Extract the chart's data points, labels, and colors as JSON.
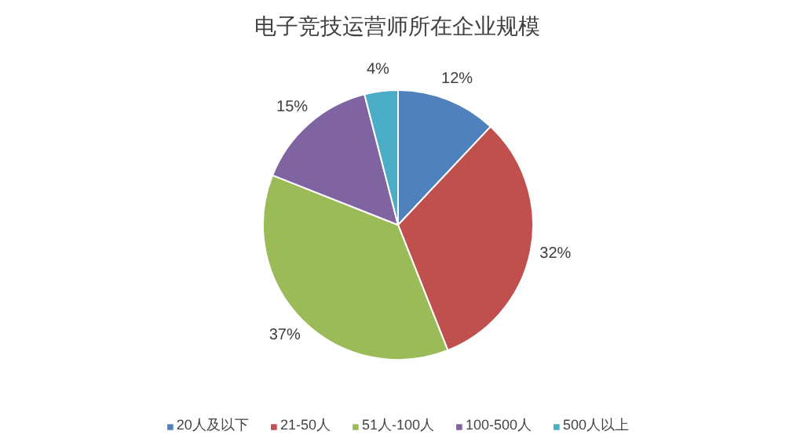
{
  "chart_data": {
    "type": "pie",
    "title": "电子竞技运营师所在企业规模",
    "categories": [
      "20人及以下",
      "21-50人",
      "51人-100人",
      "100-500人",
      "500人以上"
    ],
    "values": [
      12,
      32,
      37,
      15,
      4
    ],
    "value_labels": [
      "12%",
      "32%",
      "37%",
      "15%",
      "4%"
    ],
    "colors": [
      "#4f81bd",
      "#c0504d",
      "#9bbb59",
      "#8064a2",
      "#4bacc6"
    ],
    "legend": "bottom"
  }
}
